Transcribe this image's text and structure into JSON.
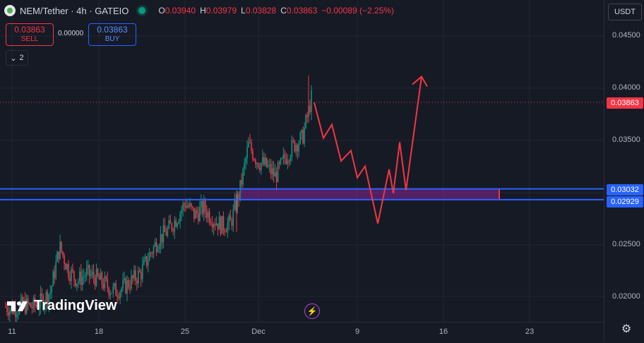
{
  "header": {
    "title": "NEM/Tether · 4h · GATEIO",
    "ohlc": [
      {
        "k": "O",
        "v": "0.03940"
      },
      {
        "k": "H",
        "v": "0.03979"
      },
      {
        "k": "L",
        "v": "0.03828"
      },
      {
        "k": "C",
        "v": "0.03863"
      },
      {
        "k": "",
        "v": "−0.00089 (−2.25%)"
      }
    ]
  },
  "trade": {
    "sell_price": "0.03863",
    "sell_label": "SELL",
    "spread": "0.00000",
    "buy_price": "0.03863",
    "buy_label": "BUY"
  },
  "indicators_collapse_count": "2",
  "currency": "USDT",
  "watermark": "TradingView",
  "colors": {
    "up": "#089981",
    "down": "#f23645",
    "level": "#2962ff",
    "zone": "#9c27b0",
    "projection": "#f23645"
  },
  "chart_data": {
    "type": "candlestick",
    "y_ticks": [
      "0.04500",
      "0.04000",
      "0.03500",
      "0.02500",
      "0.02000"
    ],
    "x_ticks": [
      "11",
      "18",
      "25",
      "Dec",
      "9",
      "16",
      "23"
    ],
    "ylim": [
      0.0185,
      0.0481
    ],
    "last_price": "0.03863",
    "levels": [
      {
        "label": "0.03032",
        "value": 0.03032
      },
      {
        "label": "0.02929",
        "value": 0.02929
      }
    ],
    "zone": {
      "top": 0.03032,
      "bottom": 0.02929,
      "x_start": "Nov 29",
      "x_end": "Dec 20"
    },
    "projection_path_prices": [
      0.0386,
      0.0352,
      0.0365,
      0.033,
      0.034,
      0.0314,
      0.0325,
      0.027,
      0.0322,
      0.0299,
      0.0348,
      0.0302,
      0.0411
    ],
    "price_path": [
      0.019,
      0.0188,
      0.0192,
      0.019,
      0.0195,
      0.0205,
      0.0248,
      0.0225,
      0.0215,
      0.0222,
      0.0218,
      0.0212,
      0.0205,
      0.0208,
      0.0215,
      0.0222,
      0.024,
      0.0255,
      0.0263,
      0.0275,
      0.029,
      0.0278,
      0.0285,
      0.0275,
      0.0268,
      0.027,
      0.03,
      0.0345,
      0.033,
      0.0325,
      0.0315,
      0.0332,
      0.0345,
      0.0352,
      0.039
    ]
  }
}
